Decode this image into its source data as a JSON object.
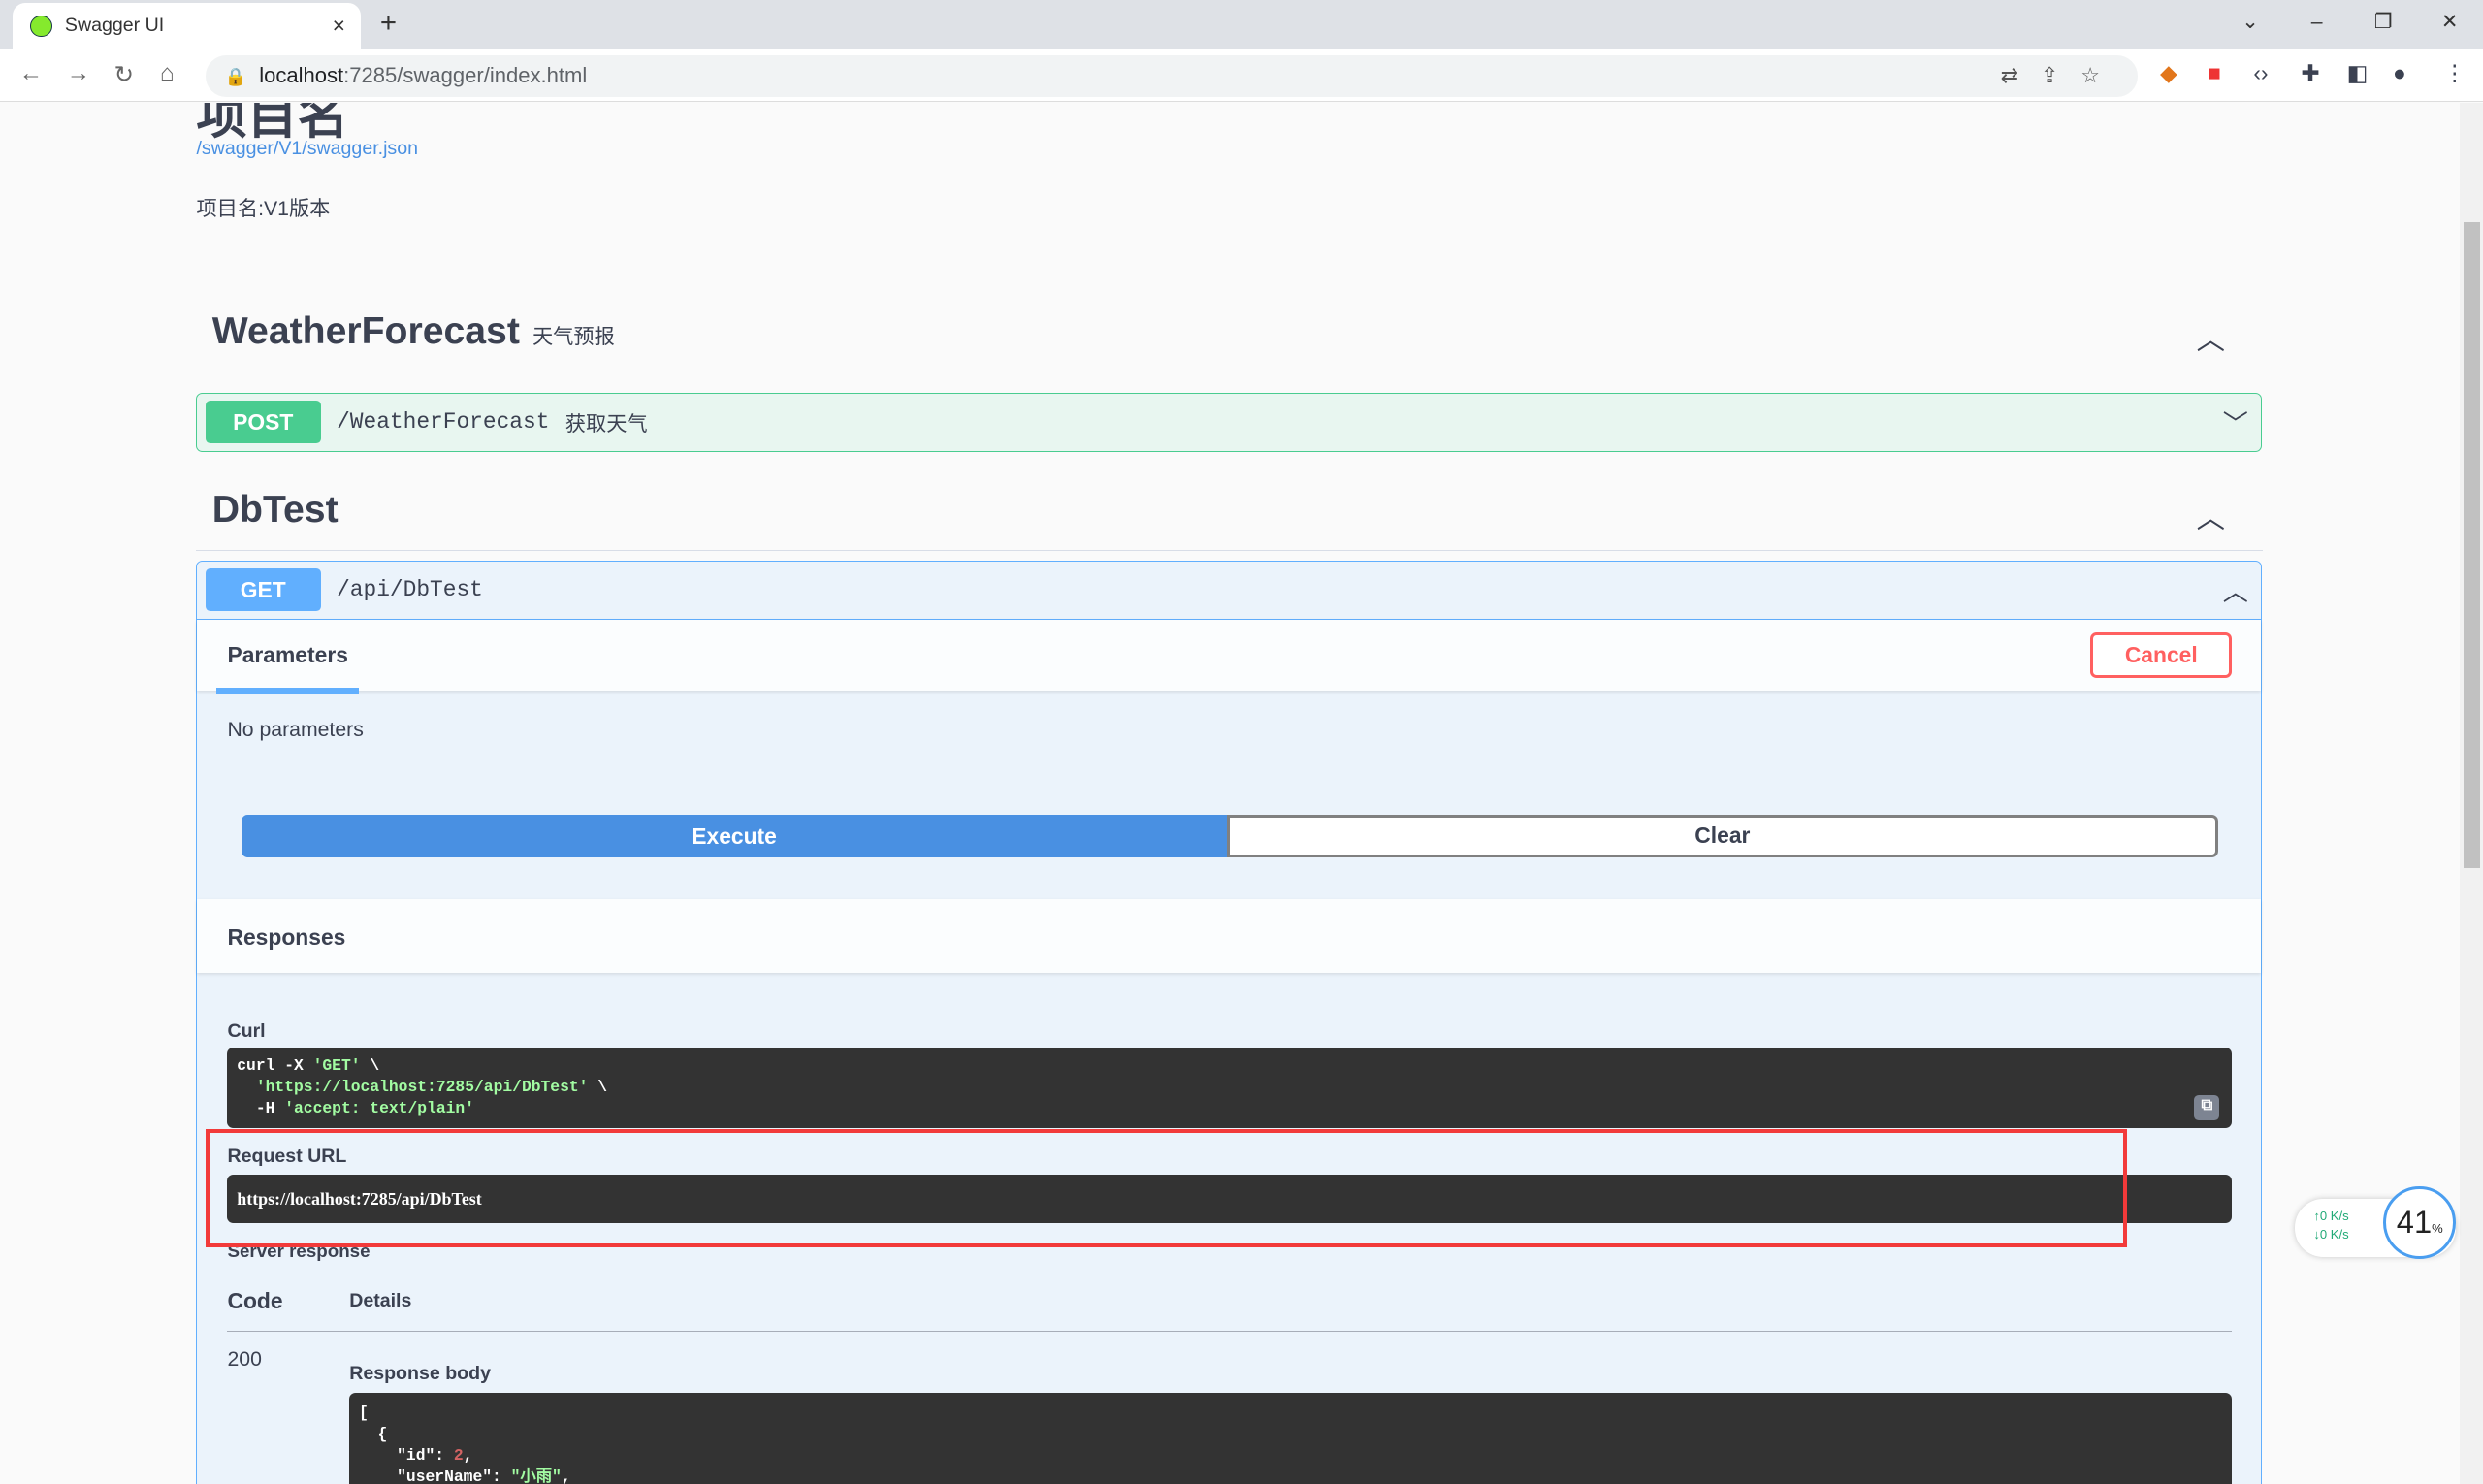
{
  "browser": {
    "tab_title": "Swagger UI",
    "new_tab": "+",
    "close": "×",
    "url_host": "localhost",
    "url_path": ":7285/swagger/index.html",
    "win": [
      "⌄",
      "–",
      "❐",
      "✕"
    ]
  },
  "page": {
    "title": "项目名",
    "spec_url": "/swagger/V1/swagger.json",
    "description": "项目名:V1版本"
  },
  "tags": [
    {
      "name": "WeatherForecast",
      "desc": "天气预报",
      "operations": [
        {
          "method": "POST",
          "path": "/WeatherForecast",
          "summary": "获取天气"
        }
      ]
    },
    {
      "name": "DbTest",
      "desc": "",
      "operations": [
        {
          "method": "GET",
          "path": "/api/DbTest",
          "summary": ""
        }
      ]
    }
  ],
  "op": {
    "params_tab": "Parameters",
    "cancel": "Cancel",
    "no_params": "No parameters",
    "execute": "Execute",
    "clear": "Clear",
    "responses": "Responses",
    "curl_label": "Curl",
    "curl_l1a": "curl -X ",
    "curl_l1b": "'GET'",
    "curl_l1c": " \\",
    "curl_l2a": "  ",
    "curl_l2b": "'https://localhost:7285/api/DbTest'",
    "curl_l2c": " \\",
    "curl_l3a": "  -H ",
    "curl_l3b": "'accept: text/plain'",
    "req_url_label": "Request URL",
    "req_url": "https://localhost:7285/api/DbTest",
    "server_response": "Server response",
    "code_hdr": "Code",
    "details_hdr": "Details",
    "code": "200",
    "body_label": "Response body",
    "body_l1": "[",
    "body_l2": "  {",
    "body_l3a": "    \"id\": ",
    "body_l3b": "2",
    "body_l3c": ",",
    "body_l4a": "    \"userName\": ",
    "body_l4b": "\"小雨\"",
    "body_l4c": ","
  },
  "netmon": {
    "up": "↑0  K/s",
    "down": "↓0  K/s",
    "cpu": "41",
    "unit": "%"
  },
  "colors": {
    "get": "#61affe",
    "post": "#49cc90",
    "execute": "#4990e2",
    "cancel": "#ff6060",
    "highlight": "#f23a3a"
  }
}
